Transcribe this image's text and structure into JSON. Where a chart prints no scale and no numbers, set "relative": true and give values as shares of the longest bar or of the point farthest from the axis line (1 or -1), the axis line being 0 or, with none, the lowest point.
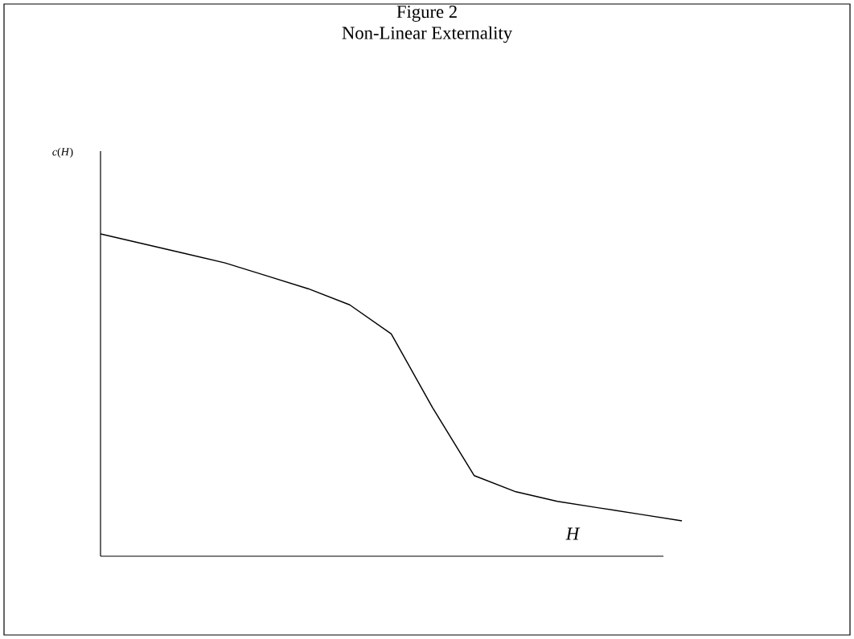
{
  "chart_data": {
    "type": "line",
    "title": "Figure 2",
    "subtitle": "Non-Linear Externality",
    "xlabel": "H",
    "annotations": [
      "*c*(*H*)"
    ],
    "relative": true,
    "categories": [
      null,
      null,
      null,
      null,
      null,
      null,
      null,
      null,
      null,
      null,
      null,
      null,
      null,
      null,
      null
    ],
    "series": [
      {
        "color": "#000000",
        "values": [
          1,
          0.97,
          0.94,
          0.91,
          0.87,
          0.83,
          0.78,
          0.69,
          0.46,
          0.25,
          0.2,
          0.17,
          0.15,
          0.13,
          0.11
        ]
      }
    ],
    "marker": "none",
    "line_style": "solid"
  }
}
